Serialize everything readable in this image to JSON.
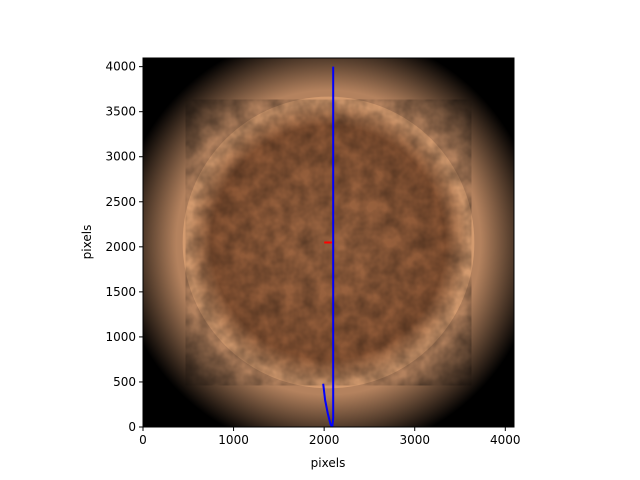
{
  "chart_data": {
    "type": "line",
    "title": "",
    "xlabel": "pixels",
    "ylabel": "pixels",
    "xlim": [
      0,
      4096
    ],
    "ylim": [
      0,
      4096
    ],
    "x_ticks": [
      0,
      1000,
      2000,
      3000,
      4000
    ],
    "y_ticks": [
      0,
      500,
      1000,
      1500,
      2000,
      2500,
      3000,
      3500,
      4000
    ],
    "x_tick_labels": [
      "0",
      "1000",
      "2000",
      "3000",
      "4000"
    ],
    "y_tick_labels": [
      "0",
      "500",
      "1000",
      "1500",
      "2000",
      "2500",
      "3000",
      "3500",
      "4000"
    ],
    "grid": false,
    "background_image": {
      "kind": "solar-disk-image",
      "disk_center": [
        2048,
        2048
      ],
      "disk_radius": 1610,
      "colors": {
        "core": "#a26a45",
        "mid": "#8a5534",
        "limb": "#d39a6e",
        "corona": "#b4825e",
        "sky": "#000000"
      }
    },
    "series": [
      {
        "color": "#0000ff",
        "points": [
          [
            2100,
            4000
          ],
          [
            2100,
            3000
          ],
          [
            2100,
            2000
          ],
          [
            2100,
            1000
          ],
          [
            2100,
            400
          ],
          [
            2100,
            100
          ],
          [
            2090,
            0
          ],
          [
            2070,
            30
          ],
          [
            2040,
            150
          ],
          [
            2010,
            300
          ],
          [
            1990,
            480
          ]
        ]
      },
      {
        "color": "#ff0000",
        "points": [
          [
            2000,
            2048
          ],
          [
            2085,
            2048
          ]
        ]
      }
    ]
  }
}
